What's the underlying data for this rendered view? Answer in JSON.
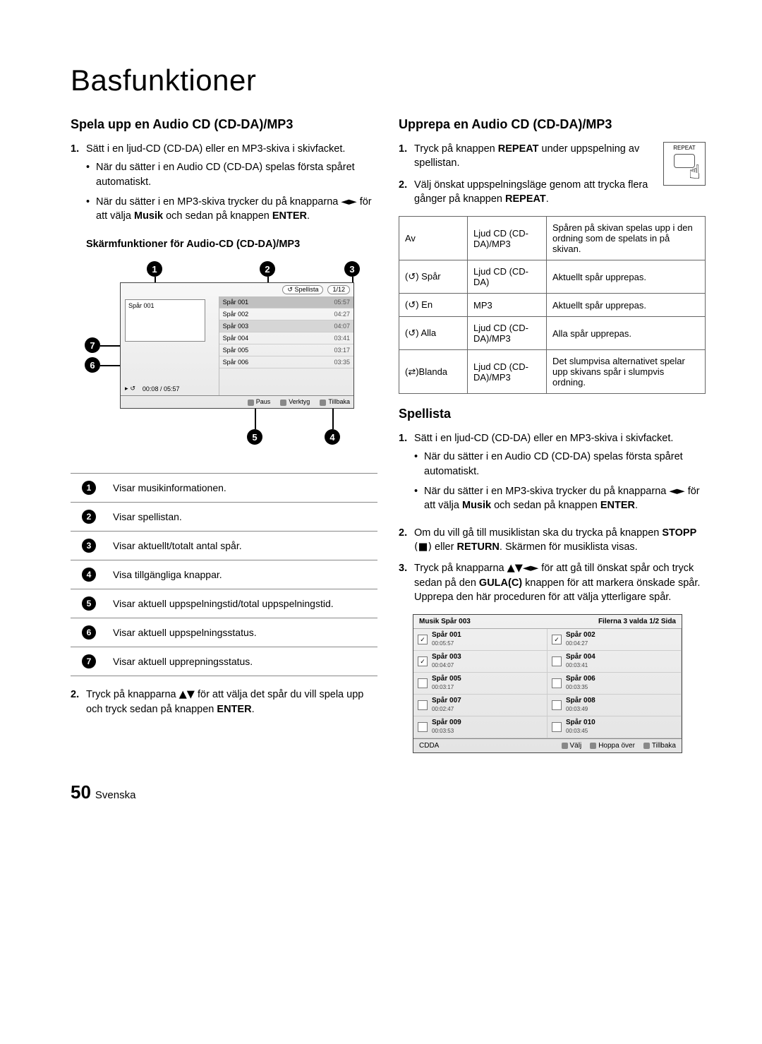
{
  "page_title": "Basfunktioner",
  "page_number": "50",
  "page_lang": "Svenska",
  "left": {
    "h": "Spela upp en Audio CD (CD-DA)/MP3",
    "step1": "Sätt i en ljud-CD (CD-DA) eller en MP3-skiva i skivfacket.",
    "b1": "När du sätter i en Audio CD (CD-DA) spelas första spåret automatiskt.",
    "b2a": "När du sätter i en MP3-skiva trycker du på knapparna ",
    "b2arrow": "◄►",
    "b2b": " för att välja ",
    "b2musik": "Musik",
    "b2c": " och sedan på knappen ",
    "b2enter": "ENTER",
    "sub": "Skärmfunktioner för Audio-CD (CD-DA)/MP3",
    "step2a": "Tryck på knapparna ",
    "step2arrow": "▲▼",
    "step2b": " för att välja det spår du vill spela upp och tryck sedan på knappen ",
    "step2enter": "ENTER",
    "callouts": {
      "1": "1",
      "2": "2",
      "3": "3",
      "4": "4",
      "5": "5",
      "6": "6",
      "7": "7"
    },
    "screen": {
      "spellista": "Spellista",
      "counter": "1/12",
      "cover_track": "Spår 001",
      "time": "00:08 / 05:57",
      "tracks": [
        {
          "t": "Spår 001",
          "d": "05:57"
        },
        {
          "t": "Spår 002",
          "d": "04:27"
        },
        {
          "t": "Spår 003",
          "d": "04:07"
        },
        {
          "t": "Spår 004",
          "d": "03:41"
        },
        {
          "t": "Spår 005",
          "d": "03:17"
        },
        {
          "t": "Spår 006",
          "d": "03:35"
        }
      ],
      "foot_pause": "Paus",
      "foot_tools": "Verktyg",
      "foot_back": "Tillbaka"
    },
    "legend": [
      "Visar musikinformationen.",
      "Visar spellistan.",
      "Visar aktuellt/totalt antal spår.",
      "Visa tillgängliga knappar.",
      "Visar aktuell uppspelningstid/total uppspelningstid.",
      "Visar aktuell uppspelningsstatus.",
      "Visar aktuell upprepningsstatus."
    ]
  },
  "right": {
    "h": "Upprepa en Audio CD (CD-DA)/MP3",
    "repeat_label": "REPEAT",
    "step1a": "Tryck på knappen ",
    "step1b": "REPEAT",
    "step1c": " under uppspelning av spellistan.",
    "step2a": "Välj önskat uppspelningsläge genom att trycka flera gånger på knappen ",
    "step2b": "REPEAT",
    "modes": [
      {
        "m": "Av",
        "s": "Ljud CD (CD-DA)/MP3",
        "d": "Spåren på skivan spelas upp i den ordning som de spelats in på skivan."
      },
      {
        "m": "(↺) Spår",
        "s": "Ljud CD (CD-DA)",
        "d": "Aktuellt spår upprepas."
      },
      {
        "m": "(↺) En",
        "s": "MP3",
        "d": "Aktuellt spår upprepas."
      },
      {
        "m": "(↺) Alla",
        "s": "Ljud CD (CD-DA)/MP3",
        "d": "Alla spår upprepas."
      },
      {
        "m": "(⇄)Blanda",
        "s": "Ljud CD (CD-DA)/MP3",
        "d": "Det slumpvisa alternativet spelar upp skivans spår i slumpvis ordning."
      }
    ],
    "h2": "Spellista",
    "sp_step1": "Sätt i en ljud-CD (CD-DA) eller en MP3-skiva i skivfacket.",
    "sp_b1": "När du sätter i en Audio CD (CD-DA) spelas första spåret automatiskt.",
    "sp_b2a": "När du sätter i en MP3-skiva trycker du på knapparna ",
    "sp_b2arrow": "◄►",
    "sp_b2b": " för att välja ",
    "sp_b2musik": "Musik",
    "sp_b2c": " och sedan på knappen ",
    "sp_b2enter": "ENTER",
    "sp_step2a": "Om du vill gå till musiklistan ska du trycka på knappen ",
    "sp_step2stop": "STOPP",
    "sp_step2stopsym": " (■)",
    "sp_step2or": " eller ",
    "sp_step2return": "RETURN",
    "sp_step2b": ". Skärmen för musiklista visas.",
    "sp_step3a": "Tryck på knapparna ",
    "sp_step3arrow": "▲▼◄►",
    "sp_step3b": " för att gå till önskat spår och tryck sedan på den ",
    "sp_step3gula": "GULA(C)",
    "sp_step3c": " knappen för att markera önskade spår. Upprepa den här proceduren för att välja ytterligare spår.",
    "screen2": {
      "head_left": "Musik   Spår 003",
      "head_right": "Filerna 3 valda   1/2 Sida",
      "items": [
        {
          "t": "Spår 001",
          "d": "00:05:57",
          "c": true
        },
        {
          "t": "Spår 002",
          "d": "00:04:27",
          "c": true
        },
        {
          "t": "Spår 003",
          "d": "00:04:07",
          "c": true
        },
        {
          "t": "Spår 004",
          "d": "00:03:41",
          "c": false
        },
        {
          "t": "Spår 005",
          "d": "00:03:17",
          "c": false
        },
        {
          "t": "Spår 006",
          "d": "00:03:35",
          "c": false
        },
        {
          "t": "Spår 007",
          "d": "00:02:47",
          "c": false
        },
        {
          "t": "Spår 008",
          "d": "00:03:49",
          "c": false
        },
        {
          "t": "Spår 009",
          "d": "00:03:53",
          "c": false
        },
        {
          "t": "Spår 010",
          "d": "00:03:45",
          "c": false
        }
      ],
      "foot_left": "CDDA",
      "foot_valj": "Välj",
      "foot_hoppa": "Hoppa över",
      "foot_back": "Tillbaka"
    }
  }
}
